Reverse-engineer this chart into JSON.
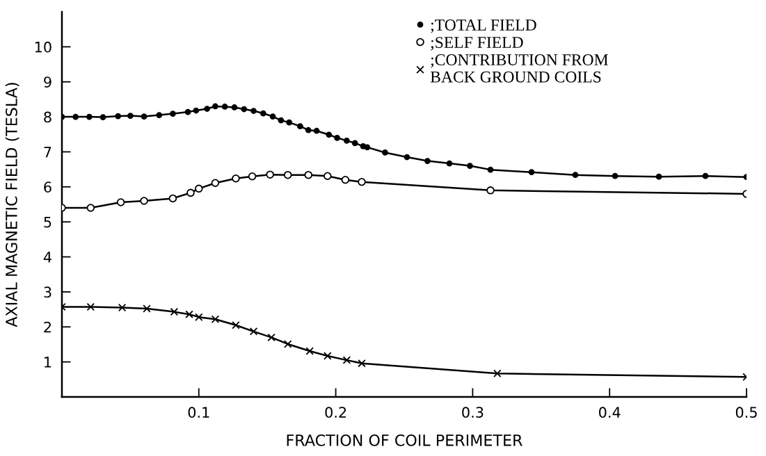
{
  "chart_data": {
    "type": "line",
    "xlabel": "FRACTION OF COIL PERIMETER",
    "ylabel": "AXIAL MAGNETIC FIELD (TESLA)",
    "xlim": [
      0,
      0.5
    ],
    "ylim": [
      0,
      11
    ],
    "xticks": [
      0.1,
      0.2,
      0.3,
      0.4,
      0.5
    ],
    "yticks": [
      1,
      2,
      3,
      4,
      5,
      6,
      7,
      8,
      9,
      10
    ],
    "grid": false,
    "legend": "top right",
    "line_style": "solid",
    "series": [
      {
        "name": ";TOTAL FIELD",
        "color": "#000000",
        "marker": "circle",
        "x": [
          0.0,
          0.01,
          0.02,
          0.03,
          0.041,
          0.05,
          0.06,
          0.071,
          0.081,
          0.092,
          0.098,
          0.106,
          0.112,
          0.119,
          0.126,
          0.133,
          0.14,
          0.147,
          0.154,
          0.16,
          0.166,
          0.174,
          0.18,
          0.186,
          0.195,
          0.201,
          0.208,
          0.214,
          0.22,
          0.223,
          0.236,
          0.252,
          0.267,
          0.283,
          0.298,
          0.313,
          0.343,
          0.375,
          0.404,
          0.436,
          0.47,
          0.5
        ],
        "values": [
          8.0,
          8.0,
          8.0,
          7.99,
          8.02,
          8.03,
          8.01,
          8.05,
          8.09,
          8.14,
          8.18,
          8.23,
          8.3,
          8.29,
          8.27,
          8.22,
          8.17,
          8.1,
          8.01,
          7.9,
          7.84,
          7.73,
          7.62,
          7.6,
          7.49,
          7.4,
          7.32,
          7.25,
          7.16,
          7.13,
          6.98,
          6.85,
          6.74,
          6.67,
          6.6,
          6.49,
          6.42,
          6.34,
          6.31,
          6.29,
          6.31,
          6.28
        ]
      },
      {
        "name": ";SELF FIELD",
        "color": "#000000",
        "marker": "circle",
        "colors": [
          "#ffffff",
          "#ffffff",
          "#ffffff",
          "#ffffff",
          "#ffffff",
          "#ffffff",
          "#ffffff",
          "#ffffff",
          "#ffffff",
          "#ffffff",
          "#ffffff",
          "#ffffff",
          "#ffffff",
          "#ffffff",
          "#ffffff",
          "#ffffff",
          "#ffffff",
          "#ffffff"
        ],
        "x": [
          0.0,
          0.021,
          0.043,
          0.06,
          0.081,
          0.094,
          0.1,
          0.112,
          0.127,
          0.139,
          0.152,
          0.165,
          0.18,
          0.194,
          0.207,
          0.219,
          0.313,
          0.5
        ],
        "values": [
          5.4,
          5.4,
          5.56,
          5.6,
          5.67,
          5.83,
          5.95,
          6.11,
          6.24,
          6.3,
          6.35,
          6.34,
          6.34,
          6.31,
          6.2,
          6.14,
          5.9,
          5.8
        ]
      },
      {
        "name": ";CONTRIBUTION FROM\nBACK GROUND COILS",
        "color": "#000000",
        "marker": "cross",
        "x": [
          0.0,
          0.021,
          0.044,
          0.062,
          0.082,
          0.093,
          0.1,
          0.112,
          0.127,
          0.14,
          0.153,
          0.165,
          0.181,
          0.194,
          0.208,
          0.219,
          0.318,
          0.5
        ],
        "values": [
          2.57,
          2.57,
          2.55,
          2.52,
          2.43,
          2.36,
          2.28,
          2.22,
          2.05,
          1.87,
          1.7,
          1.51,
          1.31,
          1.17,
          1.05,
          0.96,
          0.67,
          0.57
        ]
      }
    ]
  }
}
